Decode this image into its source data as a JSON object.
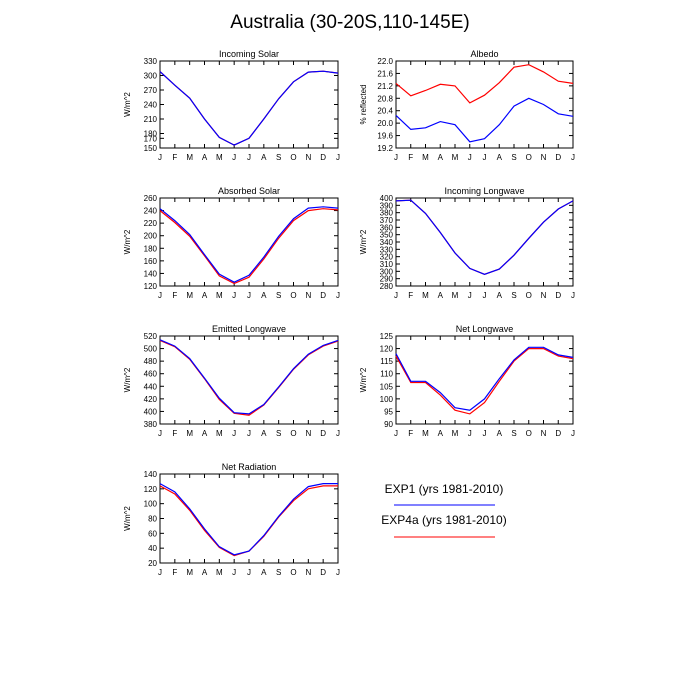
{
  "title": "Australia (30-20S,110-145E)",
  "colors": {
    "exp1": "#0000ff",
    "exp4a": "#ff0000",
    "axis": "#000000"
  },
  "legend": [
    {
      "label": "EXP1 (yrs 1981-2010)",
      "color": "#0000ff"
    },
    {
      "label": "EXP4a (yrs 1981-2010)",
      "color": "#ff0000"
    }
  ],
  "chart_data": [
    {
      "type": "line",
      "title": "Incoming Solar",
      "ylabel": "W/m^2",
      "categories": [
        "J",
        "F",
        "M",
        "A",
        "M",
        "J",
        "J",
        "A",
        "S",
        "O",
        "N",
        "D",
        "J"
      ],
      "ylim": [
        150,
        330
      ],
      "yticks": [
        "150",
        "170",
        "180",
        "210",
        "240",
        "270",
        "300",
        "330"
      ],
      "yticks_values": [
        150,
        170,
        180,
        210,
        240,
        270,
        300,
        330
      ],
      "series": [
        {
          "color": "#ff0000",
          "values": [
            308,
            280,
            253,
            210,
            172,
            156,
            170,
            210,
            252,
            287,
            307,
            309,
            305
          ]
        },
        {
          "color": "#0000ff",
          "values": [
            308,
            280,
            253,
            210,
            172,
            156,
            170,
            210,
            252,
            287,
            307,
            309,
            305
          ]
        }
      ]
    },
    {
      "type": "line",
      "title": "Albedo",
      "ylabel": "% reflected",
      "categories": [
        "J",
        "F",
        "M",
        "A",
        "M",
        "J",
        "J",
        "A",
        "S",
        "O",
        "N",
        "D",
        "J"
      ],
      "ylim": [
        19.2,
        22.0
      ],
      "yticks": [
        "19.2",
        "19.6",
        "20.0",
        "20.4",
        "20.8",
        "21.2",
        "21.6",
        "22.0"
      ],
      "yticks_values": [
        19.2,
        19.6,
        20.0,
        20.4,
        20.8,
        21.2,
        21.6,
        22.0
      ],
      "series": [
        {
          "color": "#ff0000",
          "values": [
            21.28,
            20.88,
            21.05,
            21.25,
            21.2,
            20.65,
            20.9,
            21.3,
            21.8,
            21.88,
            21.65,
            21.35,
            21.28
          ]
        },
        {
          "color": "#0000ff",
          "values": [
            20.25,
            19.8,
            19.85,
            20.05,
            19.95,
            19.4,
            19.5,
            19.95,
            20.55,
            20.8,
            20.6,
            20.3,
            20.22
          ]
        }
      ]
    },
    {
      "type": "line",
      "title": "Absorbed Solar",
      "ylabel": "W/m^2",
      "categories": [
        "J",
        "F",
        "M",
        "A",
        "M",
        "J",
        "J",
        "A",
        "S",
        "O",
        "N",
        "D",
        "J"
      ],
      "ylim": [
        120,
        260
      ],
      "yticks": [
        "120",
        "140",
        "160",
        "180",
        "200",
        "220",
        "240",
        "260"
      ],
      "yticks_values": [
        120,
        140,
        160,
        180,
        200,
        220,
        240,
        260
      ],
      "series": [
        {
          "color": "#ff0000",
          "values": [
            240,
            221,
            199,
            168,
            136,
            124,
            134,
            163,
            196,
            224,
            240,
            243,
            241
          ]
        },
        {
          "color": "#0000ff",
          "values": [
            243,
            224,
            202,
            170,
            139,
            126,
            137,
            166,
            199,
            227,
            244,
            246,
            244
          ]
        }
      ]
    },
    {
      "type": "line",
      "title": "Incoming Longwave",
      "ylabel": "W/m^2",
      "categories": [
        "J",
        "F",
        "M",
        "A",
        "M",
        "J",
        "J",
        "A",
        "S",
        "O",
        "N",
        "D",
        "J"
      ],
      "ylim": [
        280,
        400
      ],
      "yticks": [
        "280",
        "290",
        "300",
        "310",
        "320",
        "330",
        "340",
        "350",
        "360",
        "370",
        "380",
        "390",
        "400"
      ],
      "yticks_values": [
        280,
        290,
        300,
        310,
        320,
        330,
        340,
        350,
        360,
        370,
        380,
        390,
        400
      ],
      "series": [
        {
          "color": "#ff0000",
          "values": [
            396,
            397,
            379,
            353,
            325,
            304,
            296,
            303,
            322,
            345,
            367,
            385,
            396
          ]
        },
        {
          "color": "#0000ff",
          "values": [
            396,
            397,
            379,
            353,
            325,
            304,
            296,
            303,
            322,
            345,
            367,
            385,
            396
          ]
        }
      ]
    },
    {
      "type": "line",
      "title": "Emitted Longwave",
      "ylabel": "W/m^2",
      "categories": [
        "J",
        "F",
        "M",
        "A",
        "M",
        "J",
        "J",
        "A",
        "S",
        "O",
        "N",
        "D",
        "J"
      ],
      "ylim": [
        380,
        520
      ],
      "yticks": [
        "380",
        "400",
        "420",
        "440",
        "460",
        "480",
        "500",
        "520"
      ],
      "yticks_values": [
        380,
        400,
        420,
        440,
        460,
        480,
        500,
        520
      ],
      "series": [
        {
          "color": "#ff0000",
          "values": [
            513,
            503,
            483,
            452,
            419,
            397,
            394,
            410,
            438,
            467,
            490,
            504,
            512
          ]
        },
        {
          "color": "#0000ff",
          "values": [
            514,
            504,
            484,
            453,
            421,
            398,
            396,
            411,
            439,
            468,
            491,
            505,
            513
          ]
        }
      ]
    },
    {
      "type": "line",
      "title": "Net Longwave",
      "ylabel": "W/m^2",
      "categories": [
        "J",
        "F",
        "M",
        "A",
        "M",
        "J",
        "J",
        "A",
        "S",
        "O",
        "N",
        "D",
        "J"
      ],
      "ylim": [
        90,
        125
      ],
      "yticks": [
        "90",
        "95",
        "100",
        "105",
        "110",
        "115",
        "120",
        "125"
      ],
      "yticks_values": [
        90,
        95,
        100,
        105,
        110,
        115,
        120,
        125
      ],
      "series": [
        {
          "color": "#ff0000",
          "values": [
            117,
            106.5,
            106.5,
            101.5,
            95.5,
            94,
            98.5,
            107,
            115,
            120,
            120,
            117,
            116
          ]
        },
        {
          "color": "#0000ff",
          "values": [
            118,
            107,
            107,
            102.5,
            96.5,
            95.5,
            100,
            108,
            115.5,
            120.5,
            120.5,
            117.5,
            116.5
          ]
        }
      ]
    },
    {
      "type": "line",
      "title": "Net Radiation",
      "ylabel": "W/m^2",
      "categories": [
        "J",
        "F",
        "M",
        "A",
        "M",
        "J",
        "J",
        "A",
        "S",
        "O",
        "N",
        "D",
        "J"
      ],
      "ylim": [
        20,
        140
      ],
      "yticks": [
        "20",
        "40",
        "60",
        "80",
        "100",
        "120",
        "140"
      ],
      "yticks_values": [
        20,
        40,
        60,
        80,
        100,
        120,
        140
      ],
      "series": [
        {
          "color": "#ff0000",
          "values": [
            124,
            113,
            91,
            64,
            41,
            30,
            36,
            56,
            82,
            104,
            120,
            124,
            124
          ]
        },
        {
          "color": "#0000ff",
          "values": [
            127,
            116,
            93,
            66,
            42,
            31,
            36,
            57,
            83,
            106,
            123,
            127,
            127
          ]
        }
      ]
    }
  ]
}
